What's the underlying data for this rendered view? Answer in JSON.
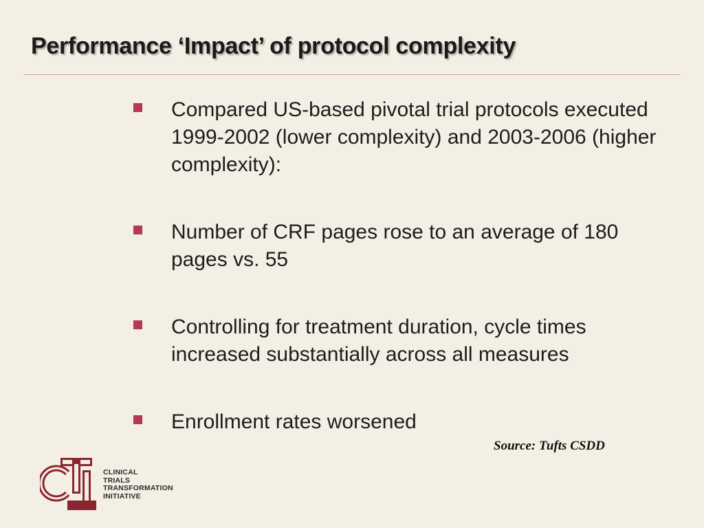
{
  "slide": {
    "title": "Performance ‘Impact’ of protocol complexity",
    "bullets": [
      "Compared US-based pivotal trial protocols executed 1999-2002 (lower complexity) and 2003-2006 (higher complexity):",
      "Number of CRF pages rose to an average of 180 pages vs. 55",
      "Controlling for treatment duration, cycle times increased substantially across all  measures",
      "Enrollment rates worsened"
    ],
    "source": "Source: Tufts CSDD"
  },
  "logo": {
    "mark": "CTI",
    "lines": [
      "CLINICAL",
      "TRIALS",
      "TRANSFORMATION",
      "INITIATIVE"
    ]
  },
  "colors": {
    "background": "#f4efe4",
    "bullet": "#b53a4f",
    "rule": "#d7a3a3",
    "logo": "#8c2530"
  }
}
